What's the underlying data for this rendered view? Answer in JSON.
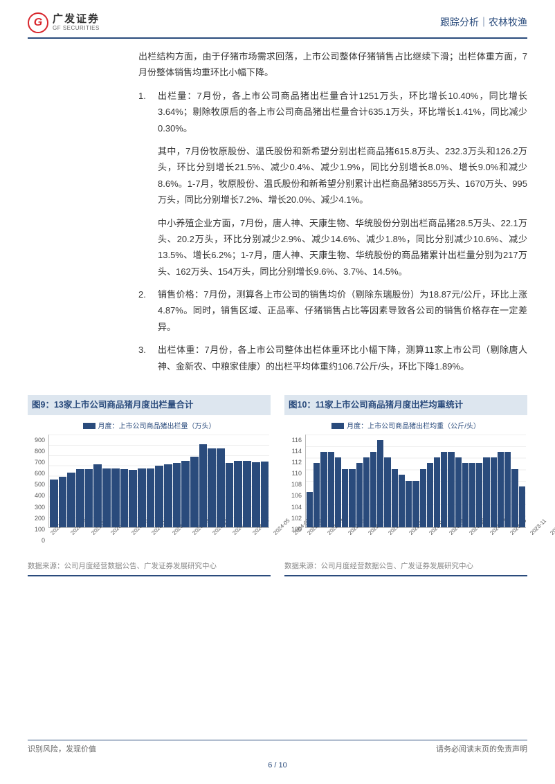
{
  "header": {
    "logo_cn": "广发证券",
    "logo_en": "GF SECURITIES",
    "right": "跟踪分析｜农林牧渔"
  },
  "body": {
    "p1": "出栏结构方面，由于仔猪市场需求回落，上市公司整体仔猪销售占比继续下滑；出栏体重方面，7月份整体销售均重环比小幅下降。",
    "item1_num": "1.",
    "item1_label": "出栏量：",
    "item1_text": "7月份，各上市公司商品猪出栏量合计1251万头，环比增长10.40%，同比增长3.64%；剔除牧原后的各上市公司商品猪出栏量合计635.1万头，环比增长1.41%，同比减少0.30%。",
    "p2": "其中，7月份牧原股份、温氏股份和新希望分别出栏商品猪615.8万头、232.3万头和126.2万头，环比分别增长21.5%、减少0.4%、减少1.9%，同比分别增长8.0%、增长9.0%和减少8.6%。1-7月，牧原股份、温氏股份和新希望分别累计出栏商品猪3855万头、1670万头、995万头，同比分别增长7.2%、增长20.0%、减少4.1%。",
    "p3": "中小养殖企业方面，7月份，唐人神、天康生物、华统股份分别出栏商品猪28.5万头、22.1万头、20.2万头，环比分别减少2.9%、减少14.6%、减少1.8%，同比分别减少10.6%、减少13.5%、增长6.2%；1-7月，唐人神、天康生物、华统股份的商品猪累计出栏量分别为217万头、162万头、154万头，同比分别增长9.6%、3.7%、14.5%。",
    "item2_num": "2.",
    "item2_label": "销售价格：",
    "item2_text": "7月份，测算各上市公司的销售均价（剔除东瑞股份）为18.87元/公斤，环比上涨4.87%。同时，销售区域、正品率、仔猪销售占比等因素导致各公司的销售价格存在一定差异。",
    "item3_num": "3.",
    "item3_label": "出栏体重：",
    "item3_text": "7月份，各上市公司整体出栏体重环比小幅下降，测算11家上市公司（剔除唐人神、金新农、中粮家佳康）的出栏平均体重约106.7公斤/头，环比下降1.89%。"
  },
  "chart9": {
    "title": "图9：13家上市公司商品猪月度出栏量合计",
    "legend": "月度：上市公司商品猪出栏量（万头）",
    "ymax": 900,
    "ymin": 0,
    "ystep": 100,
    "yticks": [
      "900",
      "800",
      "700",
      "600",
      "500",
      "400",
      "300",
      "200",
      "100",
      "0"
    ],
    "bar_color": "#2a4b7c",
    "labels": [
      "2022-07",
      "2022-09",
      "2022-11",
      "2023-01",
      "2023-03",
      "2023-05",
      "2023-07",
      "2023-09",
      "2023-11",
      "2024-01",
      "2024-03",
      "2024-05",
      "2024-07"
    ],
    "values": [
      460,
      490,
      530,
      560,
      560,
      610,
      565,
      570,
      560,
      555,
      570,
      570,
      595,
      610,
      620,
      640,
      680,
      800,
      760,
      760,
      620,
      640,
      640,
      630,
      635
    ],
    "source": "数据来源：公司月度经营数据公告、广发证券发展研究中心"
  },
  "chart10": {
    "title": "图10：11家上市公司商品猪月度出栏均重统计",
    "legend": "月度：上市公司商品猪出栏均重（公斤/头）",
    "ymax": 116,
    "ymin": 100,
    "ystep": 2,
    "yticks": [
      "116",
      "114",
      "112",
      "110",
      "108",
      "106",
      "104",
      "102",
      "100"
    ],
    "bar_color": "#2a4b7c",
    "labels": [
      "2022-01",
      "2022-03",
      "2022-05",
      "2022-07",
      "2022-09",
      "2022-11",
      "2023-01",
      "2023-03",
      "2023-05",
      "2023-07",
      "2023-09",
      "2023-11",
      "2024-01",
      "2024-03",
      "2024-05",
      "2024-07"
    ],
    "values": [
      106,
      111,
      113,
      113,
      112,
      110,
      110,
      111,
      112,
      113,
      115,
      112,
      110,
      109,
      108,
      108,
      110,
      111,
      112,
      113,
      113,
      112,
      111,
      111,
      111,
      112,
      112,
      113,
      113,
      110,
      107
    ],
    "source": "数据来源：公司月度经营数据公告、广发证券发展研究中心"
  },
  "footer": {
    "left": "识别风险，发现价值",
    "right": "请务必阅读末页的免责声明",
    "page": "6 / 10"
  }
}
